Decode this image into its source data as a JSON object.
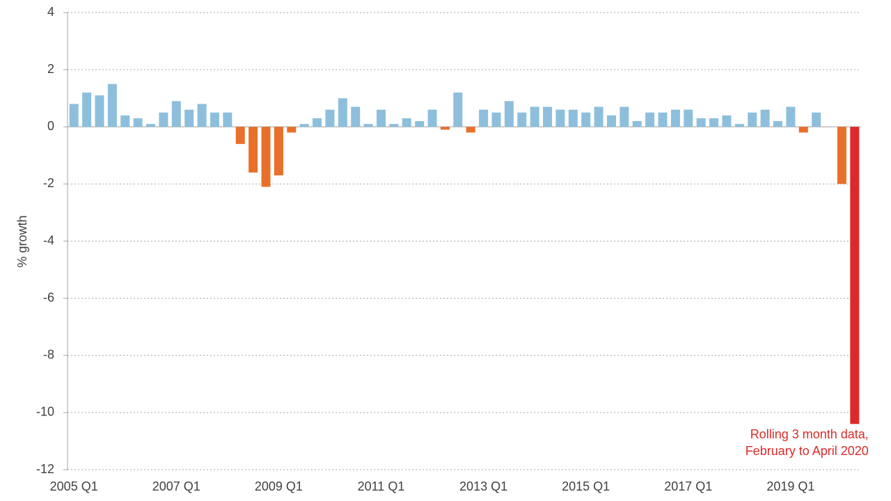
{
  "chart_data": {
    "type": "bar",
    "y_label": "% growth",
    "categories": [
      "2005 Q1",
      null,
      null,
      null,
      null,
      null,
      null,
      null,
      "2007 Q1",
      null,
      null,
      null,
      null,
      null,
      null,
      null,
      "2009 Q1",
      null,
      null,
      null,
      null,
      null,
      null,
      null,
      "2011 Q1",
      null,
      null,
      null,
      null,
      null,
      null,
      null,
      "2013 Q1",
      null,
      null,
      null,
      null,
      null,
      null,
      null,
      "2015 Q1",
      null,
      null,
      null,
      null,
      null,
      null,
      null,
      "2017 Q1",
      null,
      null,
      null,
      null,
      null,
      null,
      null,
      "2019 Q1",
      null,
      null,
      null,
      null,
      null
    ],
    "values": [
      0.8,
      1.2,
      1.1,
      1.5,
      0.4,
      0.3,
      0.1,
      0.5,
      0.9,
      0.6,
      0.8,
      0.5,
      0.5,
      -0.6,
      -1.6,
      -2.1,
      -1.7,
      -0.2,
      0.1,
      0.3,
      0.6,
      1.0,
      0.7,
      0.1,
      0.6,
      0.1,
      0.3,
      0.2,
      0.6,
      -0.1,
      1.2,
      -0.2,
      0.6,
      0.5,
      0.9,
      0.5,
      0.7,
      0.7,
      0.6,
      0.6,
      0.5,
      0.7,
      0.4,
      0.7,
      0.2,
      0.5,
      0.5,
      0.6,
      0.6,
      0.3,
      0.3,
      0.4,
      0.1,
      0.5,
      0.6,
      0.2,
      0.7,
      -0.2,
      0.5,
      0.0,
      -2.0,
      -10.4
    ],
    "colors": [
      "#8dbfdd",
      "#8dbfdd",
      "#8dbfdd",
      "#8dbfdd",
      "#8dbfdd",
      "#8dbfdd",
      "#8dbfdd",
      "#8dbfdd",
      "#8dbfdd",
      "#8dbfdd",
      "#8dbfdd",
      "#8dbfdd",
      "#8dbfdd",
      "#e8702a",
      "#e8702a",
      "#e8702a",
      "#e8702a",
      "#e8702a",
      "#8dbfdd",
      "#8dbfdd",
      "#8dbfdd",
      "#8dbfdd",
      "#8dbfdd",
      "#8dbfdd",
      "#8dbfdd",
      "#8dbfdd",
      "#8dbfdd",
      "#8dbfdd",
      "#8dbfdd",
      "#e8702a",
      "#8dbfdd",
      "#e8702a",
      "#8dbfdd",
      "#8dbfdd",
      "#8dbfdd",
      "#8dbfdd",
      "#8dbfdd",
      "#8dbfdd",
      "#8dbfdd",
      "#8dbfdd",
      "#8dbfdd",
      "#8dbfdd",
      "#8dbfdd",
      "#8dbfdd",
      "#8dbfdd",
      "#8dbfdd",
      "#8dbfdd",
      "#8dbfdd",
      "#8dbfdd",
      "#8dbfdd",
      "#8dbfdd",
      "#8dbfdd",
      "#8dbfdd",
      "#8dbfdd",
      "#8dbfdd",
      "#8dbfdd",
      "#8dbfdd",
      "#e8702a",
      "#8dbfdd",
      "#8dbfdd",
      "#e8702a",
      "#dc2a2a"
    ],
    "annotation": {
      "lines": [
        "Rolling 3 month data,",
        "February to April 2020"
      ],
      "color": "#dc2a2a"
    },
    "ylim": [
      -12,
      4
    ],
    "yticks": [
      -12,
      -10,
      -8,
      -6,
      -4,
      -2,
      0,
      2,
      4
    ],
    "grid": true
  }
}
